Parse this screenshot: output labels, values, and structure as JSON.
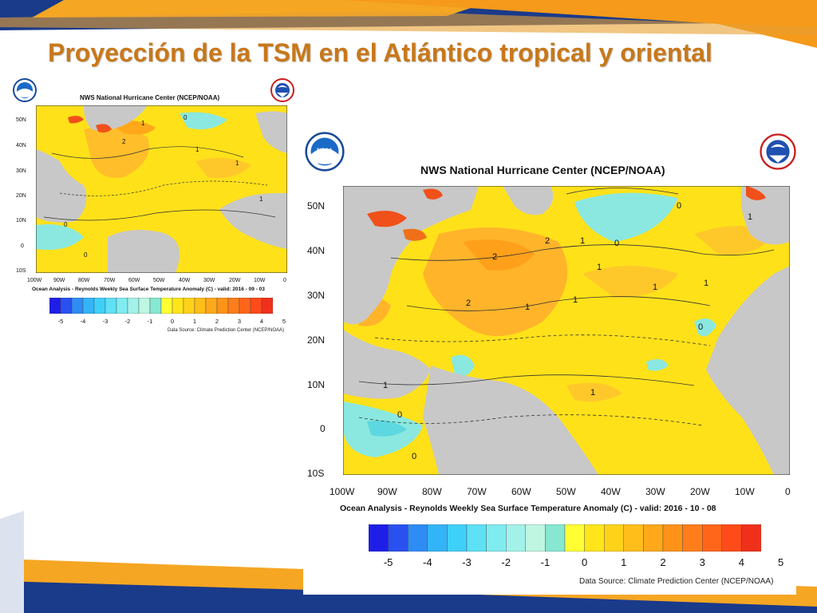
{
  "slide": {
    "title": "Proyección de la TSM en el Atlántico tropical y oriental"
  },
  "map_small": {
    "header": "NWS National Hurricane Center (NCEP/NOAA)",
    "caption": "Ocean Analysis - Reynolds Weekly Sea Surface Temperature Anomaly (C) - valid: 2016 - 09 - 03",
    "source": "Data Source: Climate Prediction Center (NCEP/NOAA)",
    "lat_labels": [
      "50N",
      "40N",
      "30N",
      "20N",
      "10N",
      "0",
      "10S"
    ],
    "lon_labels": [
      "100W",
      "90W",
      "80W",
      "70W",
      "60W",
      "50W",
      "40W",
      "30W",
      "20W",
      "10W",
      "0"
    ],
    "contour_labels": [
      "0",
      "1",
      "2",
      "1",
      "0",
      "1",
      "1",
      "0"
    ]
  },
  "map_large": {
    "header": "NWS National Hurricane Center (NCEP/NOAA)",
    "caption": "Ocean Analysis - Reynolds Weekly Sea Surface Temperature Anomaly (C) - valid: 2016 - 10 - 08",
    "source": "Data Source: Climate Prediction Center (NCEP/NOAA)",
    "lat_labels": [
      "50N",
      "40N",
      "30N",
      "20N",
      "10N",
      "0",
      "10S"
    ],
    "lon_labels": [
      "100W",
      "90W",
      "80W",
      "70W",
      "60W",
      "50W",
      "40W",
      "30W",
      "20W",
      "10W",
      "0"
    ],
    "contour_labels": [
      "0",
      "1",
      "2",
      "2",
      "2",
      "1",
      "1",
      "1",
      "1",
      "1",
      "0",
      "0",
      "1",
      "1",
      "0",
      "0",
      "1"
    ]
  },
  "colorbar": {
    "labels": [
      "-5",
      "-4",
      "-3",
      "-2",
      "-1",
      "0",
      "1",
      "2",
      "3",
      "4",
      "5"
    ],
    "colors": [
      "#1e1ee8",
      "#2a50f0",
      "#2f8cf5",
      "#34b4f8",
      "#3fd0fa",
      "#5ee0f5",
      "#80ecf0",
      "#a2f2ea",
      "#bff6e2",
      "#86e8d0",
      "#ffff33",
      "#ffe51a",
      "#ffd21a",
      "#ffbe1a",
      "#ffa81a",
      "#ff931a",
      "#ff7d1a",
      "#ff661a",
      "#ff4a1a",
      "#f0301a"
    ]
  },
  "logos": {
    "noaa": "NOAA",
    "nws": "NATIONAL WEATHER SERVICE"
  }
}
